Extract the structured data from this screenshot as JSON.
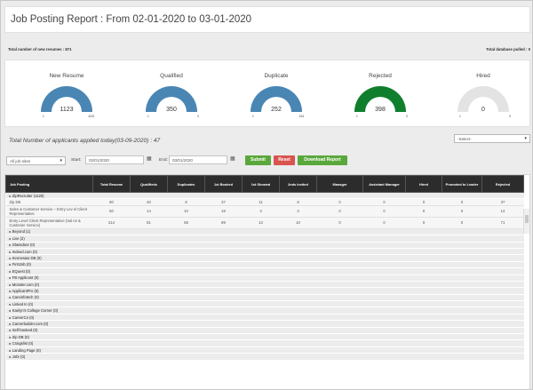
{
  "page": {
    "title": "Job Posting Report : From 02-01-2020 to 03-01-2020"
  },
  "counts": {
    "new_resumes": "Total number of new resumes : 871",
    "pulled": "Total database pulled : 0"
  },
  "gauges": [
    {
      "label": "New Resume",
      "value": "1123",
      "min": "1",
      "max": "1123",
      "fraction": 1.0,
      "color": "#4a86b4"
    },
    {
      "label": "Qualified",
      "value": "350",
      "min": "1",
      "max": "0",
      "fraction": 1.0,
      "color": "#4a86b4"
    },
    {
      "label": "Duplicate",
      "value": "252",
      "min": "1",
      "max": "104",
      "fraction": 1.0,
      "color": "#4a86b4"
    },
    {
      "label": "Rejected",
      "value": "398",
      "min": "1",
      "max": "0",
      "fraction": 1.0,
      "color": "#0f7f2e"
    },
    {
      "label": "Hired",
      "value": "0",
      "min": "1",
      "max": "0",
      "fraction": 0.0,
      "color": "#4a86b4"
    }
  ],
  "today": "Total Number of applicants applied today(03-09-2020) : 47",
  "filters": {
    "top_select": "-Select-",
    "job_sites": "All job sites",
    "start_label": "Start:",
    "start_value": "02/01/2020",
    "end_label": "End:",
    "end_value": "03/01/2020",
    "submit": "Submit",
    "reset": "Reset",
    "download": "Download Report"
  },
  "table": {
    "headers": [
      "Job Posting",
      "Total Resume",
      "Qualifieds",
      "Duplicates",
      "1st Booked",
      "1st Showed",
      "2nds Invited",
      "Manager",
      "Assistant Manager",
      "Hired",
      "Promoted to Leader",
      "Rejected"
    ],
    "groups": [
      {
        "label": "▸ ZipRecruiter (1120)",
        "rows": [
          [
            "Zip DB",
            "90",
            "40",
            "8",
            "37",
            "11",
            "8",
            "0",
            "0",
            "0",
            "0",
            "37"
          ],
          [
            "Sales & Customer Service – Entry Lev el Client Representative",
            "50",
            "14",
            "10",
            "18",
            "3",
            "3",
            "0",
            "0",
            "0",
            "0",
            "14"
          ],
          [
            "Entry Level Client Representative (Sal es & Customer Service)",
            "214",
            "81",
            "58",
            "89",
            "13",
            "10",
            "0",
            "0",
            "0",
            "0",
            "71"
          ]
        ]
      },
      {
        "label": "▸ Beyond (1)"
      },
      {
        "label": "▸ Live (2)"
      },
      {
        "label": "▸ Glassdoor (0)"
      },
      {
        "label": "▸ Indeed.com (0)"
      },
      {
        "label": "▸ Kennesaw DB (0)"
      },
      {
        "label": "▸ FirstJob (0)"
      },
      {
        "label": "▸ EQuest (0)"
      },
      {
        "label": "▸ FB Applicant (0)"
      },
      {
        "label": "▸ Monster.com (0)"
      },
      {
        "label": "▸ ApplicantPro (0)"
      },
      {
        "label": "▸ Careinfotech (0)"
      },
      {
        "label": "▸ Linked In (0)"
      },
      {
        "label": "▸ Kaelyn's College Corner (0)"
      },
      {
        "label": "▸ CareerCo (0)"
      },
      {
        "label": "▸ Careerbuilder.com (0)"
      },
      {
        "label": "▸ Self-booked (0)"
      },
      {
        "label": "▸ Zip DB (0)"
      },
      {
        "label": "▸ Craigslist (0)"
      },
      {
        "label": "▸ Landing Page (0)"
      },
      {
        "label": "▸ Jobr (0)"
      }
    ]
  }
}
